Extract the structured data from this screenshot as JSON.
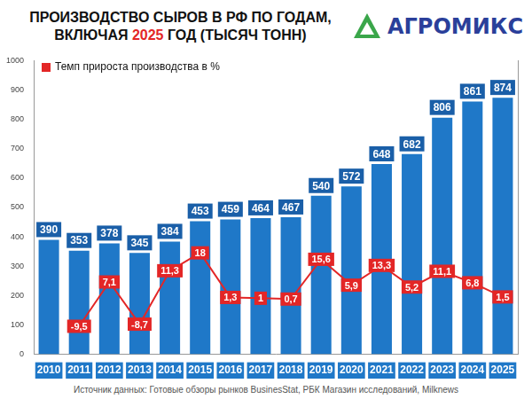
{
  "chart_data": {
    "type": "bar",
    "title": "ПРОИЗВОДСТВО СЫРОВ В РФ ПО ГОДАМ, ВКЛЮЧАЯ 2025 ГОД (ТЫСЯЧ ТОНН)",
    "logo": "АГРОМИКС",
    "source": "Источник данных: Готовые обзоры рынков BusinesStat, РБК Магазин исследований, Milknews",
    "categories": [
      "2010",
      "2011",
      "2012",
      "2013",
      "2014",
      "2015",
      "2016",
      "2017",
      "2018",
      "2019",
      "2020",
      "2021",
      "2022",
      "2023",
      "2024",
      "2025"
    ],
    "series": [
      {
        "type": "bar",
        "color": "#1f78c8",
        "values": [
          390,
          353,
          378,
          345,
          384,
          453,
          459,
          464,
          467,
          540,
          572,
          648,
          682,
          806,
          861,
          874
        ],
        "data_labels": true
      },
      {
        "name": "Темп прироста производства в %",
        "type": "line",
        "axis": "y2",
        "color": "#e32626",
        "marker": "square",
        "values": [
          null,
          -9.5,
          7.1,
          -8.7,
          11.3,
          18,
          1.3,
          1,
          0.7,
          15.6,
          5.9,
          13.3,
          5.2,
          11.1,
          6.8,
          1.5
        ],
        "value_labels": [
          null,
          "-9,5",
          "7,1",
          "-8,7",
          "11,3",
          "18",
          "1,3",
          "1",
          "0,7",
          "15,6",
          "5,9",
          "13,3",
          "5,2",
          "11,1",
          "6,8",
          "1,5"
        ],
        "data_labels": true
      }
    ],
    "ylim": [
      0,
      1000
    ],
    "yticks": [
      0,
      100,
      200,
      300,
      400,
      500,
      600,
      700,
      800,
      900,
      1000
    ],
    "y2lim": [
      -20,
      90
    ],
    "grid": false,
    "legend": "upper left"
  }
}
